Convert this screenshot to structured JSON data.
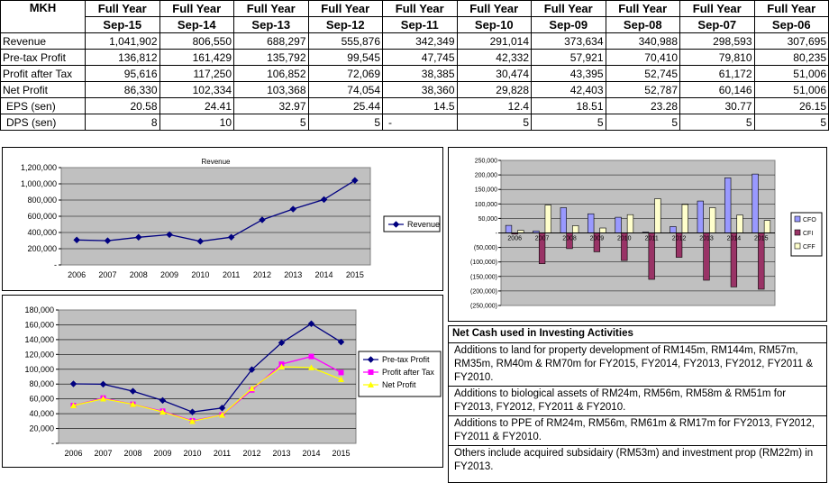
{
  "table": {
    "corner": "MKH",
    "header_top": [
      "Full Year",
      "Full Year",
      "Full Year",
      "Full Year",
      "Full Year",
      "Full Year",
      "Full Year",
      "Full Year",
      "Full Year",
      "Full Year"
    ],
    "header_bottom": [
      "Sep-15",
      "Sep-14",
      "Sep-13",
      "Sep-12",
      "Sep-11",
      "Sep-10",
      "Sep-09",
      "Sep-08",
      "Sep-07",
      "Sep-06"
    ],
    "rows": [
      {
        "label": "Revenue",
        "values": [
          "1,041,902",
          "806,550",
          "688,297",
          "555,876",
          "342,349",
          "291,014",
          "373,634",
          "340,988",
          "298,593",
          "307,695"
        ]
      },
      {
        "label": "Pre-tax Profit",
        "values": [
          "136,812",
          "161,429",
          "135,792",
          "99,545",
          "47,745",
          "42,332",
          "57,921",
          "70,410",
          "79,810",
          "80,235"
        ]
      },
      {
        "label": "Profit after Tax",
        "values": [
          "95,616",
          "117,250",
          "106,852",
          "72,069",
          "38,385",
          "30,474",
          "43,395",
          "52,745",
          "61,172",
          "51,006"
        ]
      },
      {
        "label": "Net Profit",
        "values": [
          "86,330",
          "102,334",
          "103,368",
          "74,054",
          "38,360",
          "29,828",
          "42,403",
          "52,787",
          "60,146",
          "51,006"
        ]
      },
      {
        "label": "EPS (sen)",
        "values": [
          "20.58",
          "24.41",
          "32.97",
          "25.44",
          "14.5",
          "12.4",
          "18.51",
          "23.28",
          "30.77",
          "26.15"
        ]
      },
      {
        "label": "DPS (sen)",
        "values": [
          "8",
          "10",
          "5",
          "5",
          "-",
          "5",
          "5",
          "5",
          "5",
          "5"
        ]
      }
    ]
  },
  "notes": {
    "title": "Net Cash used in Investing Activities",
    "items": [
      "Additions to land for property development of RM145m, RM144m, RM57m, RM35m, RM40m & RM70m for FY2015, FY2014, FY2013, FY2012, FY2011 & FY2010.",
      "Additions to biological assets of RM24m, RM56m, RM58m & RM51m for FY2013, FY2012, FY2011 & FY2010.",
      "Additions to PPE of RM24m, RM56m, RM61m & RM17m for FY2013, FY2012, FY2011 & FY2010.",
      "Others include acquired subsidairy (RM53m) and investment prop (RM22m) in FY2013."
    ]
  },
  "chart_data": [
    {
      "type": "line",
      "title": "Revenue",
      "categories": [
        "2006",
        "2007",
        "2008",
        "2009",
        "2010",
        "2011",
        "2012",
        "2013",
        "2014",
        "2015"
      ],
      "series": [
        {
          "name": "Revenue",
          "color": "#000080",
          "values": [
            307695,
            298593,
            340988,
            373634,
            291014,
            342349,
            555876,
            688297,
            806550,
            1041902
          ]
        }
      ],
      "ylim": [
        0,
        1200000
      ],
      "yticks": [
        "-",
        "200,000",
        "400,000",
        "600,000",
        "800,000",
        "1,000,000",
        "1,200,000"
      ],
      "plot_bg": "#c0c0c0",
      "grid": true,
      "legend": "right"
    },
    {
      "type": "bar",
      "categories": [
        "2006",
        "2007",
        "2008",
        "2009",
        "2010",
        "2011",
        "2012",
        "2013",
        "2014",
        "2015"
      ],
      "series": [
        {
          "name": "CFO",
          "color": "#9999ff",
          "values": [
            26000,
            7000,
            87000,
            66000,
            54000,
            3000,
            22000,
            110000,
            190000,
            203000
          ]
        },
        {
          "name": "CFI",
          "color": "#993366",
          "values": [
            -4000,
            -106000,
            -54000,
            -65000,
            -95000,
            -160000,
            -84000,
            -163000,
            -186000,
            -194000
          ]
        },
        {
          "name": "CFF",
          "color": "#ffffcc",
          "values": [
            9000,
            96000,
            25000,
            17000,
            63000,
            118000,
            98000,
            87000,
            62000,
            43000
          ]
        }
      ],
      "ylim": [
        -250000,
        250000
      ],
      "yticks": [
        "(250,000)",
        "(200,000)",
        "(150,000)",
        "(100,000)",
        "(50,000)",
        "-",
        "50,000",
        "100,000",
        "150,000",
        "200,000",
        "250,000"
      ],
      "plot_bg": "#c0c0c0",
      "grid": true,
      "legend": "right"
    },
    {
      "type": "line",
      "categories": [
        "2006",
        "2007",
        "2008",
        "2009",
        "2010",
        "2011",
        "2012",
        "2013",
        "2014",
        "2015"
      ],
      "series": [
        {
          "name": "Pre-tax Profit",
          "color": "#000080",
          "values": [
            80235,
            79810,
            70410,
            57921,
            42332,
            47745,
            99545,
            135792,
            161429,
            136812
          ]
        },
        {
          "name": "Profit after Tax",
          "color": "#ff00ff",
          "values": [
            51006,
            61172,
            52745,
            43395,
            30474,
            38385,
            72069,
            106852,
            117250,
            95616
          ]
        },
        {
          "name": "Net Profit",
          "color": "#ffff00",
          "values": [
            51006,
            60146,
            52787,
            42403,
            29828,
            38360,
            74054,
            103368,
            102334,
            86330
          ]
        }
      ],
      "ylim": [
        0,
        180000
      ],
      "yticks": [
        "-",
        "20,000",
        "40,000",
        "60,000",
        "80,000",
        "100,000",
        "120,000",
        "140,000",
        "160,000",
        "180,000"
      ],
      "plot_bg": "#c0c0c0",
      "grid": true,
      "legend": "right"
    }
  ]
}
